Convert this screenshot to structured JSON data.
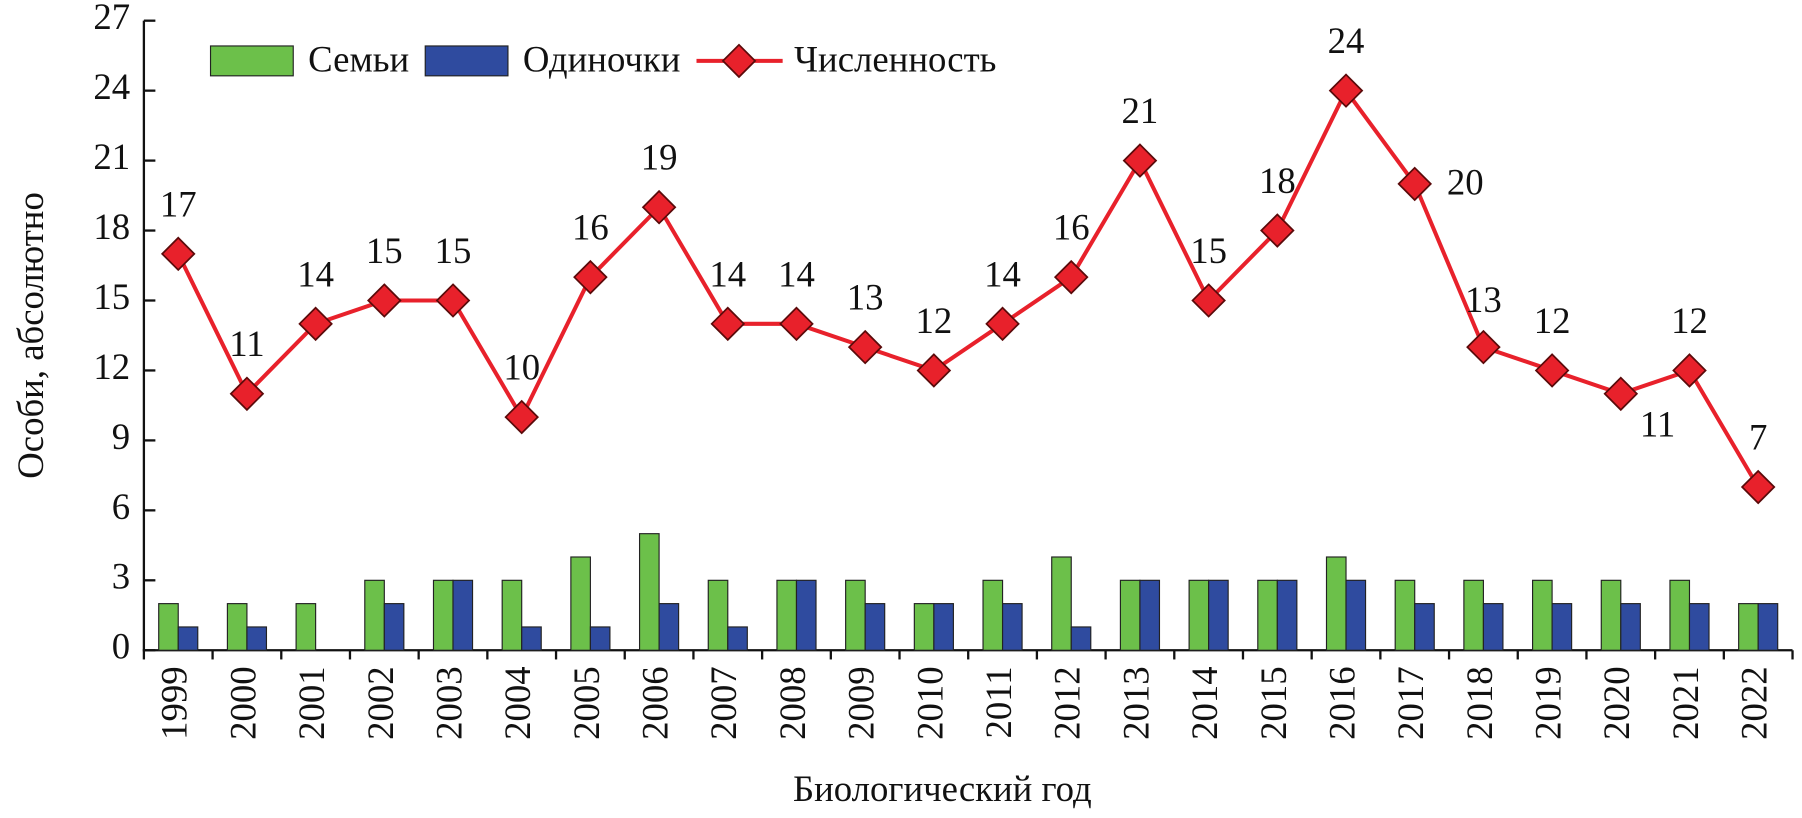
{
  "chart_data": {
    "type": "bar-line",
    "x_label": "Биологический год",
    "y_label": "Особи, абсолютно",
    "categories": [
      "1999",
      "2000",
      "2001",
      "2002",
      "2003",
      "2004",
      "2005",
      "2006",
      "2007",
      "2008",
      "2009",
      "2010",
      "2011",
      "2012",
      "2013",
      "2014",
      "2015",
      "2016",
      "2017",
      "2018",
      "2019",
      "2020",
      "2021",
      "2022"
    ],
    "series": [
      {
        "name": "Семьи",
        "type": "bar",
        "color": "#6cc04a",
        "values": [
          2,
          2,
          2,
          3,
          3,
          3,
          4,
          5,
          3,
          3,
          3,
          2,
          3,
          4,
          3,
          3,
          3,
          4,
          3,
          3,
          3,
          3,
          3,
          2
        ]
      },
      {
        "name": "Одиночки",
        "type": "bar",
        "color": "#2f4b9f",
        "values": [
          1,
          1,
          0,
          2,
          3,
          1,
          1,
          2,
          1,
          3,
          2,
          2,
          2,
          1,
          3,
          3,
          3,
          3,
          2,
          2,
          2,
          2,
          2,
          2
        ]
      },
      {
        "name": "Численность",
        "type": "line",
        "color": "#e8212b",
        "values": [
          17,
          11,
          14,
          15,
          15,
          10,
          16,
          19,
          14,
          14,
          13,
          12,
          14,
          16,
          21,
          15,
          18,
          24,
          20,
          13,
          12,
          11,
          12,
          7
        ]
      }
    ],
    "ylim": [
      0,
      27
    ],
    "yticks": [
      0,
      3,
      6,
      9,
      12,
      15,
      18,
      21,
      24,
      27
    ],
    "grid": false,
    "legend": "top-left"
  }
}
